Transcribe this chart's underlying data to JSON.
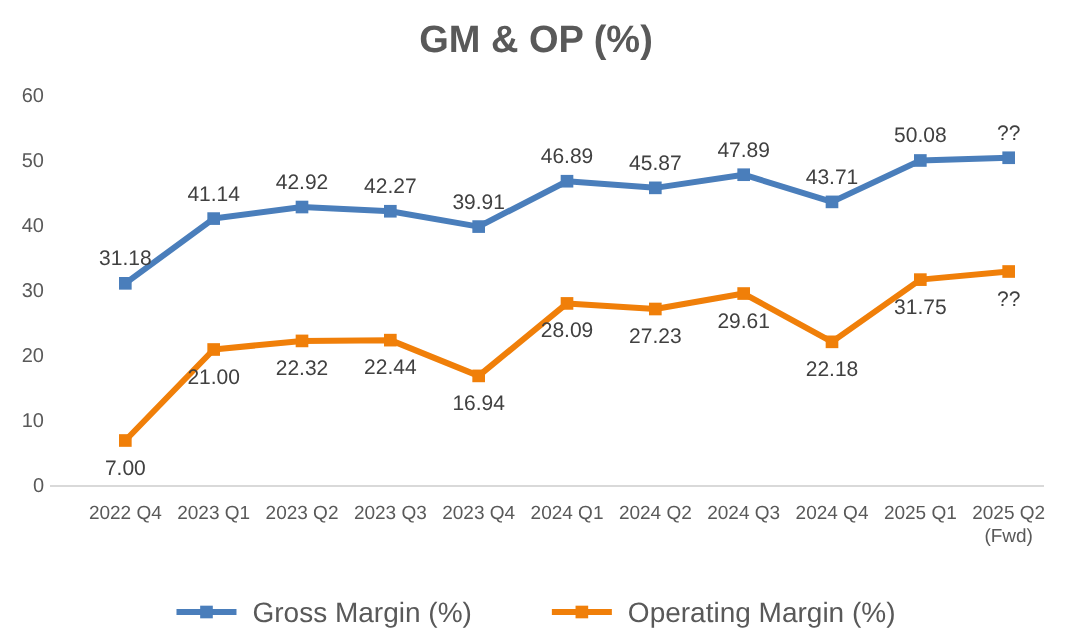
{
  "chart_data": {
    "type": "line",
    "title": "GM & OP (%)",
    "categories": [
      "2022 Q4",
      "2023 Q1",
      "2023 Q2",
      "2023 Q3",
      "2023 Q4",
      "2024 Q1",
      "2024 Q2",
      "2024 Q3",
      "2024 Q4",
      "2025 Q1",
      "2025 Q2\n(Fwd)"
    ],
    "series": [
      {
        "name": "Gross Margin (%)",
        "color": "#4a7ebb",
        "values": [
          31.18,
          41.14,
          42.92,
          42.27,
          39.91,
          46.89,
          45.87,
          47.89,
          43.71,
          50.08,
          50.5
        ],
        "value_labels": [
          "31.18",
          "41.14",
          "42.92",
          "42.27",
          "39.91",
          "46.89",
          "45.87",
          "47.89",
          "43.71",
          "50.08",
          "??"
        ]
      },
      {
        "name": "Operating Margin (%)",
        "color": "#f07f09",
        "values": [
          7.0,
          21.0,
          22.32,
          22.44,
          16.94,
          28.09,
          27.23,
          29.61,
          22.18,
          31.75,
          33
        ],
        "value_labels": [
          "7.00",
          "21.00",
          "22.32",
          "22.44",
          "16.94",
          "28.09",
          "27.23",
          "29.61",
          "22.18",
          "31.75",
          "??"
        ]
      }
    ],
    "ylim": [
      0,
      60
    ],
    "yticks": [
      0,
      10,
      20,
      30,
      40,
      50,
      60
    ],
    "grid": false,
    "legend": "bottom",
    "marker": "square",
    "line_style": "solid"
  }
}
